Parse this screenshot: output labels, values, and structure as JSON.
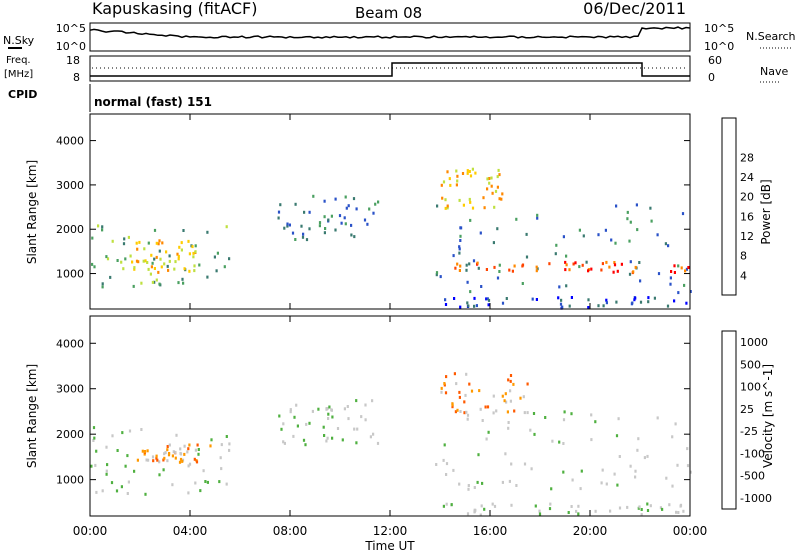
{
  "header": {
    "station": "Kapuskasing (fitACF)",
    "beam": "Beam 08",
    "date": "06/Dec/2011"
  },
  "top_panels": {
    "nsky_label": "N.Sky",
    "nsearch_label": "N.Search",
    "noise_ticks": [
      "10^5",
      "10^0"
    ],
    "freq_label_1": "Freq.",
    "freq_label_2": "[MHz]",
    "freq_ticks": [
      "18",
      "8"
    ],
    "nave_label": "Nave",
    "nave_ticks": [
      "60",
      "0"
    ],
    "cpid_label": "CPID",
    "cpid_value": "normal (fast) 151"
  },
  "colors": {
    "power": [
      "#0000ff",
      "#2a52c8",
      "#3a7a70",
      "#4aa060",
      "#bfe040",
      "#ffcc00",
      "#ff8800",
      "#ff4400",
      "#ff0000"
    ],
    "velocity": [
      "#1f3fbf",
      "#2e7d6a",
      "#4fb040",
      "#c8c8c8",
      "#c8c8c8",
      "#ff9900",
      "#ff5a00",
      "#ff0000"
    ],
    "ground_scatter": "#b8b8b8"
  },
  "chart_data": [
    {
      "type": "heatmap",
      "name": "power",
      "ylabel": "Slant Range [km]",
      "yticks": [
        1000,
        2000,
        3000,
        4000
      ],
      "ylim": [
        200,
        4600
      ],
      "xlim": [
        0,
        24
      ],
      "colorbar_label": "Power [dB]",
      "colorbar_ticks": [
        "4",
        "8",
        "12",
        "16",
        "20",
        "24",
        "28"
      ],
      "regions": [
        {
          "t0": 0.0,
          "t1": 5.6,
          "r0": 700,
          "r1": 2200,
          "level": 3
        },
        {
          "t0": 1.5,
          "t1": 4.2,
          "r0": 1000,
          "r1": 1800,
          "level": 5
        },
        {
          "t0": 7.5,
          "t1": 11.5,
          "r0": 1800,
          "r1": 2800,
          "level": 2
        },
        {
          "t0": 13.8,
          "t1": 24.0,
          "r0": 600,
          "r1": 2600,
          "level": 2
        },
        {
          "t0": 14.5,
          "t1": 24.0,
          "r0": 1050,
          "r1": 1300,
          "level": 7
        },
        {
          "t0": 14.0,
          "t1": 16.5,
          "r0": 2500,
          "r1": 3400,
          "level": 5
        },
        {
          "t0": 14.0,
          "t1": 24.0,
          "r0": 250,
          "r1": 500,
          "level": 1
        }
      ]
    },
    {
      "type": "heatmap",
      "name": "velocity",
      "ylabel": "Slant Range [km]",
      "xlabel": "Time UT",
      "yticks": [
        1000,
        2000,
        3000,
        4000
      ],
      "ylim": [
        200,
        4600
      ],
      "xlim": [
        0,
        24
      ],
      "xticks": [
        "00:00",
        "04:00",
        "08:00",
        "12:00",
        "16:00",
        "20:00",
        "00:00"
      ],
      "colorbar_label": "Velocity [m s^-1]",
      "colorbar_ticks": [
        "1000",
        "500",
        "100",
        "25",
        "-25",
        "-100",
        "-500",
        "-1000"
      ],
      "regions": [
        {
          "t0": 0.0,
          "t1": 5.6,
          "r0": 700,
          "r1": 2200,
          "level": 3
        },
        {
          "t0": 1.8,
          "t1": 4.8,
          "r0": 1400,
          "r1": 1800,
          "level": 5
        },
        {
          "t0": 7.5,
          "t1": 11.5,
          "r0": 1800,
          "r1": 2800,
          "level": 3
        },
        {
          "t0": 13.8,
          "t1": 24.0,
          "r0": 800,
          "r1": 2600,
          "level": 3
        },
        {
          "t0": 14.0,
          "t1": 17.5,
          "r0": 2500,
          "r1": 3400,
          "level": 5
        },
        {
          "t0": 14.0,
          "t1": 24.0,
          "r0": 250,
          "r1": 500,
          "level": 3
        }
      ]
    }
  ]
}
